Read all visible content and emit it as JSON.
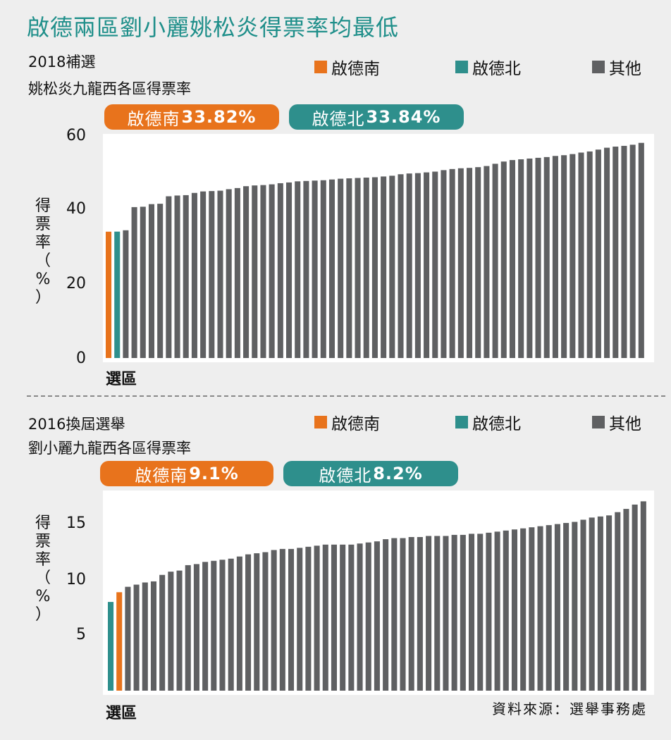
{
  "title": "啟德兩區劉小麗姚松炎得票率均最低",
  "colors": {
    "south": "#e8731c",
    "north": "#2e8f8c",
    "other": "#5f6062",
    "title": "#1f8f8a"
  },
  "legend": [
    {
      "label": "啟德南",
      "color": "#e8731c"
    },
    {
      "label": "啟德北",
      "color": "#2e8f8c"
    },
    {
      "label": "其他",
      "color": "#5f6062"
    }
  ],
  "source": "資料來源：選舉事務處",
  "chart_data": [
    {
      "type": "bar",
      "subtitle1": "2018補選",
      "subtitle2": "姚松炎九龍西各區得票率",
      "ylabel": "得票率（%）",
      "xlabel": "選區",
      "yticks": [
        0,
        20,
        40,
        60
      ],
      "ylim": [
        0,
        60
      ],
      "callouts": [
        {
          "name": "啟德南",
          "value": "33.82%",
          "color": "#e8731c"
        },
        {
          "name": "啟德北",
          "value": "33.84%",
          "color": "#2e8f8c"
        }
      ],
      "series": [
        {
          "name": "啟德南",
          "values": [
            33.82
          ]
        },
        {
          "name": "啟德北",
          "values": [
            33.84
          ]
        },
        {
          "name": "其他",
          "values": [
            34.2,
            40.4,
            40.5,
            41.2,
            41.3,
            43.3,
            43.5,
            43.6,
            44.2,
            44.6,
            44.7,
            44.8,
            45.2,
            45.5,
            46.0,
            46.2,
            46.3,
            46.5,
            46.8,
            47.0,
            47.3,
            47.4,
            47.5,
            47.6,
            47.8,
            48.0,
            48.1,
            48.2,
            48.3,
            48.4,
            48.6,
            48.8,
            49.2,
            49.4,
            49.5,
            49.7,
            49.9,
            50.3,
            50.6,
            50.8,
            50.9,
            51.1,
            51.4,
            52.0,
            52.6,
            53.0,
            53.2,
            53.4,
            53.6,
            53.8,
            54.1,
            54.3,
            54.6,
            55.0,
            55.3,
            55.8,
            56.3,
            56.6,
            56.8,
            57.1,
            57.6
          ]
        }
      ]
    },
    {
      "type": "bar",
      "subtitle1": "2016換屆選舉",
      "subtitle2": "劉小麗九龍西各區得票率",
      "ylabel": "得票率（%）",
      "xlabel": "選區",
      "yticks": [
        5,
        10,
        15
      ],
      "ylim": [
        0,
        18.5
      ],
      "callouts": [
        {
          "name": "啟德南",
          "value": "9.1%",
          "color": "#e8731c"
        },
        {
          "name": "啟德北",
          "value": "8.2%",
          "color": "#2e8f8c"
        }
      ],
      "series": [
        {
          "name": "啟德北",
          "values": [
            8.2
          ]
        },
        {
          "name": "啟德南",
          "values": [
            9.1
          ]
        },
        {
          "name": "其他",
          "values": [
            9.6,
            9.8,
            10.0,
            10.1,
            10.7,
            11.0,
            11.1,
            11.6,
            11.7,
            11.9,
            12.0,
            12.1,
            12.2,
            12.4,
            12.6,
            12.7,
            12.8,
            13.0,
            13.1,
            13.1,
            13.2,
            13.3,
            13.4,
            13.5,
            13.5,
            13.5,
            13.5,
            13.6,
            13.7,
            13.8,
            14.0,
            14.1,
            14.1,
            14.2,
            14.2,
            14.3,
            14.3,
            14.3,
            14.4,
            14.4,
            14.5,
            14.5,
            14.6,
            14.7,
            14.8,
            14.9,
            15.0,
            15.1,
            15.2,
            15.3,
            15.4,
            15.5,
            15.6,
            15.8,
            16.0,
            16.1,
            16.2,
            16.5,
            16.8,
            17.2,
            17.5
          ]
        }
      ]
    }
  ]
}
